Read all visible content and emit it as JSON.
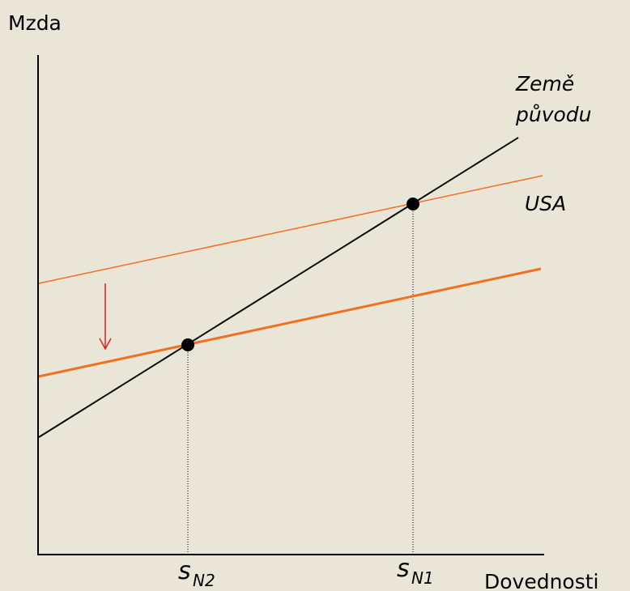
{
  "axes": {
    "y_label": "Mzda",
    "x_label": "Dovednosti"
  },
  "lines": [
    {
      "label": [
        "Země",
        "původu"
      ]
    },
    {
      "label": "USA"
    }
  ],
  "points": [
    {
      "label": "s",
      "subscript": "N2"
    },
    {
      "label": "s",
      "subscript": "N1"
    }
  ]
}
